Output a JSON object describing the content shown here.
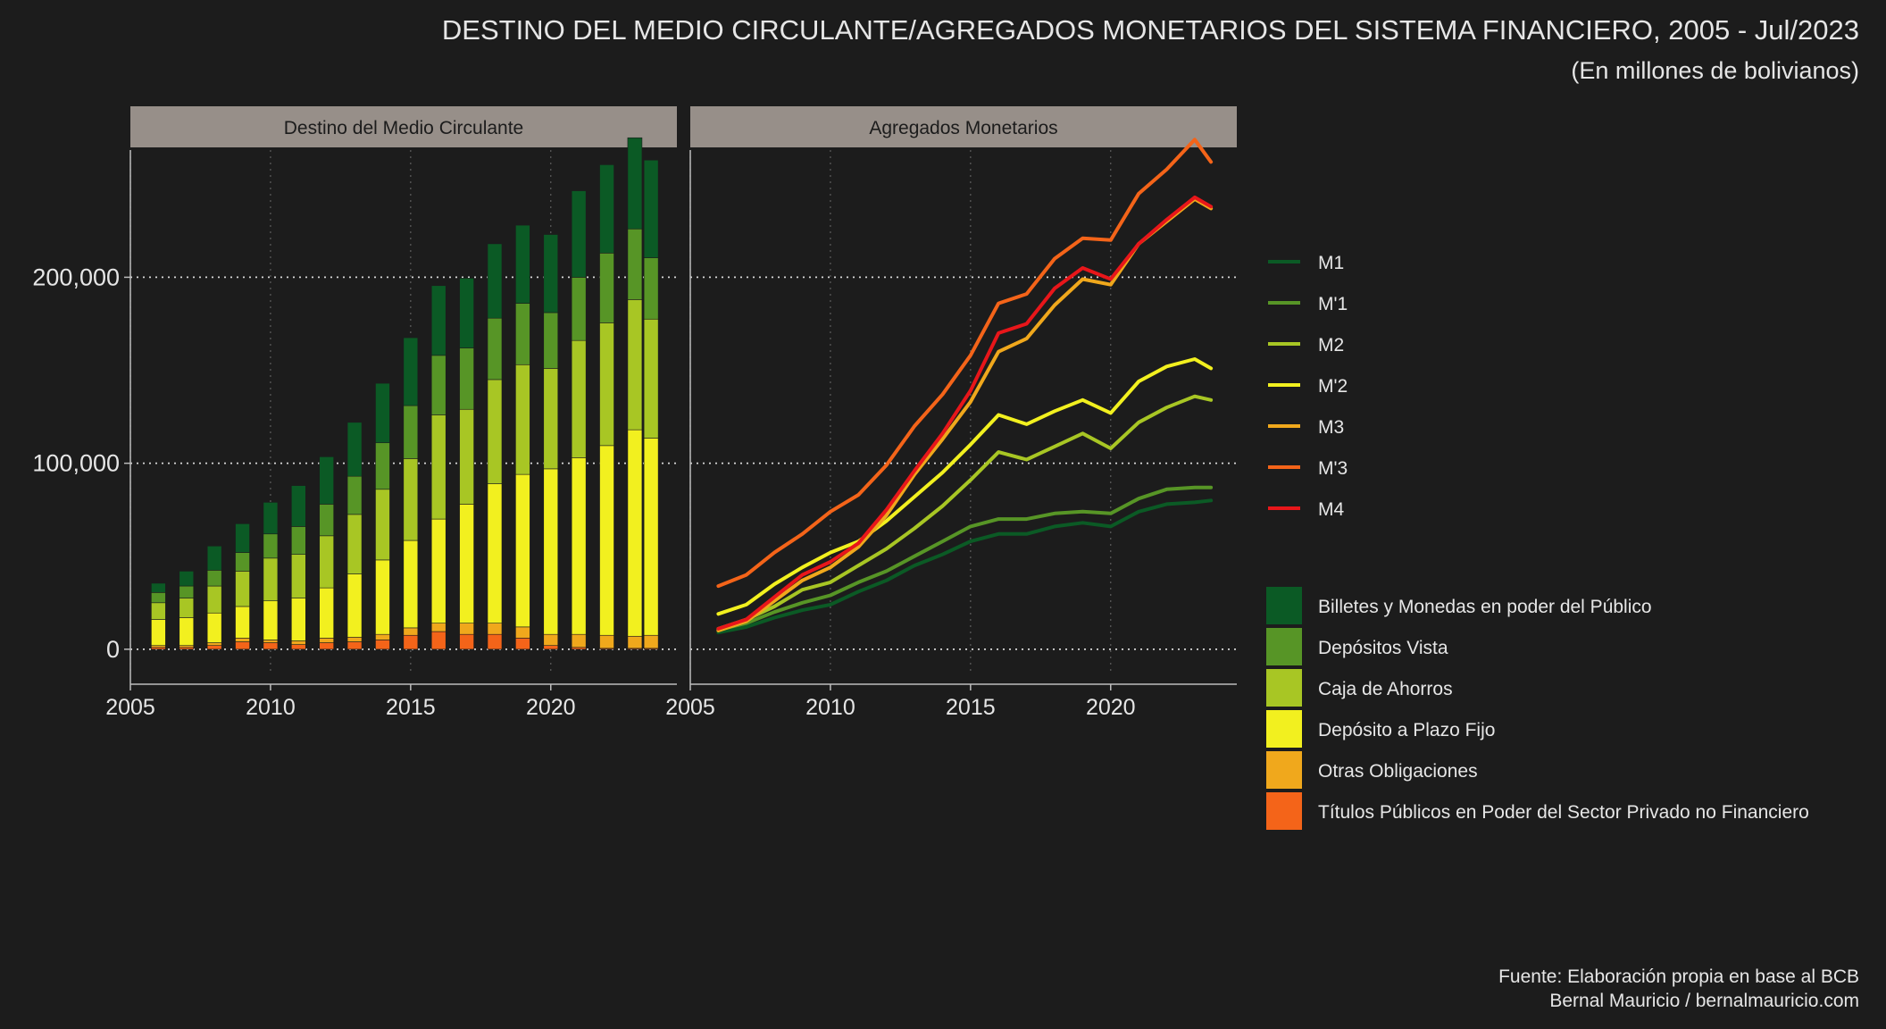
{
  "title": "DESTINO DEL MEDIO CIRCULANTE/AGREGADOS MONETARIOS DEL SISTEMA FINANCIERO, 2005 - Jul/2023",
  "subtitle": "(En millones de bolivianos)",
  "caption": [
    "Fuente: Elaboración propia en base al BCB",
    "Bernal Mauricio / bernalmauricio.com"
  ],
  "chart_data": [
    {
      "type": "bar",
      "stacked": true,
      "panel_title": "Destino del Medio Circulante",
      "x": [
        2006,
        2007,
        2008,
        2009,
        2010,
        2011,
        2012,
        2013,
        2014,
        2015,
        2016,
        2017,
        2018,
        2019,
        2020,
        2021,
        2022,
        2023,
        2023.58
      ],
      "xlim": [
        2005,
        2024.5
      ],
      "ylim": [
        -14000,
        290000
      ],
      "x_ticks": [
        2005,
        2010,
        2015,
        2020
      ],
      "y_ticks": [
        0,
        100000,
        200000
      ],
      "y_tick_labels": [
        "0",
        "100,000",
        "200,000"
      ],
      "grid": true,
      "legend_position": "right",
      "series": [
        {
          "name": "Títulos Públicos en Poder del Sector Privado no Financiero",
          "color": "#f46419",
          "values": [
            1000,
            1000,
            2000,
            4000,
            3500,
            2500,
            3500,
            4000,
            5000,
            7500,
            9500,
            8000,
            8000,
            6000,
            2000,
            1000,
            500,
            500,
            500
          ]
        },
        {
          "name": "Otras Obligaciones",
          "color": "#f0a81c",
          "values": [
            1000,
            1000,
            1500,
            2000,
            1500,
            2000,
            2500,
            2500,
            3000,
            4000,
            4500,
            6000,
            6000,
            6000,
            6000,
            7000,
            7000,
            6500,
            7000
          ]
        },
        {
          "name": "Depósito a Plazo Fijo",
          "color": "#f2f01f",
          "values": [
            14000,
            15000,
            16000,
            17000,
            21000,
            23000,
            27000,
            34000,
            40000,
            47000,
            56000,
            64000,
            75000,
            82000,
            89000,
            95000,
            102000,
            111000,
            106000
          ]
        },
        {
          "name": "Caja de Ahorros",
          "color": "#a8c624",
          "values": [
            9000,
            10500,
            14500,
            19000,
            23000,
            23500,
            28000,
            32000,
            38000,
            44000,
            56000,
            51000,
            56000,
            59000,
            54000,
            63000,
            66000,
            70000,
            64000
          ]
        },
        {
          "name": "Depósitos Vista",
          "color": "#579526",
          "values": [
            5500,
            6500,
            8500,
            10000,
            13000,
            15000,
            17000,
            20500,
            25000,
            28500,
            32000,
            33000,
            33000,
            33000,
            30000,
            34000,
            37500,
            38000,
            33000
          ]
        },
        {
          "name": "Billetes y Monedas en poder del Público",
          "color": "#0b5a25",
          "values": [
            5000,
            8000,
            13000,
            15500,
            17000,
            22000,
            25500,
            29000,
            32000,
            36500,
            37500,
            37500,
            40000,
            42000,
            42000,
            46500,
            47500,
            49000,
            52500
          ]
        }
      ]
    },
    {
      "type": "line",
      "panel_title": "Agregados Monetarios",
      "x": [
        2006,
        2007,
        2008,
        2009,
        2010,
        2011,
        2012,
        2013,
        2014,
        2015,
        2016,
        2017,
        2018,
        2019,
        2020,
        2021,
        2022,
        2023,
        2023.58
      ],
      "xlim": [
        2005,
        2024.5
      ],
      "ylim": [
        -14000,
        290000
      ],
      "x_ticks": [
        2005,
        2010,
        2015,
        2020
      ],
      "grid": true,
      "legend_position": "right",
      "series": [
        {
          "name": "M1",
          "color": "#0b5a25",
          "values": [
            9000,
            12000,
            17000,
            21000,
            24000,
            31000,
            37000,
            45000,
            51000,
            58000,
            62000,
            62000,
            66000,
            68000,
            66000,
            74000,
            78000,
            79000,
            80000
          ]
        },
        {
          "name": "M'1",
          "color": "#579526",
          "values": [
            10500,
            14000,
            20000,
            25000,
            29000,
            36000,
            42000,
            50000,
            58000,
            66000,
            70000,
            70000,
            73000,
            74000,
            73000,
            81000,
            86000,
            87000,
            87000
          ]
        },
        {
          "name": "M2",
          "color": "#a8c624",
          "values": [
            11000,
            16000,
            23000,
            32000,
            36000,
            45000,
            54000,
            65000,
            77000,
            91000,
            106000,
            102000,
            109000,
            116000,
            108000,
            122000,
            130000,
            136000,
            134000
          ]
        },
        {
          "name": "M'2",
          "color": "#f2f01f",
          "values": [
            19000,
            24000,
            35000,
            44000,
            52000,
            58000,
            69000,
            82000,
            95000,
            110000,
            126000,
            121000,
            128000,
            134000,
            127000,
            144000,
            152000,
            156000,
            151000
          ]
        },
        {
          "name": "M3",
          "color": "#f0a81c",
          "values": [
            10000,
            15000,
            26000,
            37000,
            44000,
            55000,
            72000,
            94000,
            113000,
            133000,
            160000,
            167000,
            185000,
            199000,
            196000,
            218000,
            230000,
            242000,
            237000
          ]
        },
        {
          "name": "M'3",
          "color": "#f46419",
          "values": [
            34000,
            40000,
            52000,
            62000,
            74000,
            83000,
            99000,
            120000,
            137000,
            158000,
            186000,
            191000,
            210000,
            221000,
            220000,
            245000,
            258000,
            274000,
            262000
          ]
        },
        {
          "name": "M4",
          "color": "#e8161a",
          "values": [
            11000,
            16000,
            28000,
            40000,
            47000,
            57000,
            75000,
            96000,
            116000,
            139000,
            170000,
            175000,
            194000,
            205000,
            199000,
            218000,
            231000,
            243000,
            238000
          ]
        }
      ]
    }
  ]
}
